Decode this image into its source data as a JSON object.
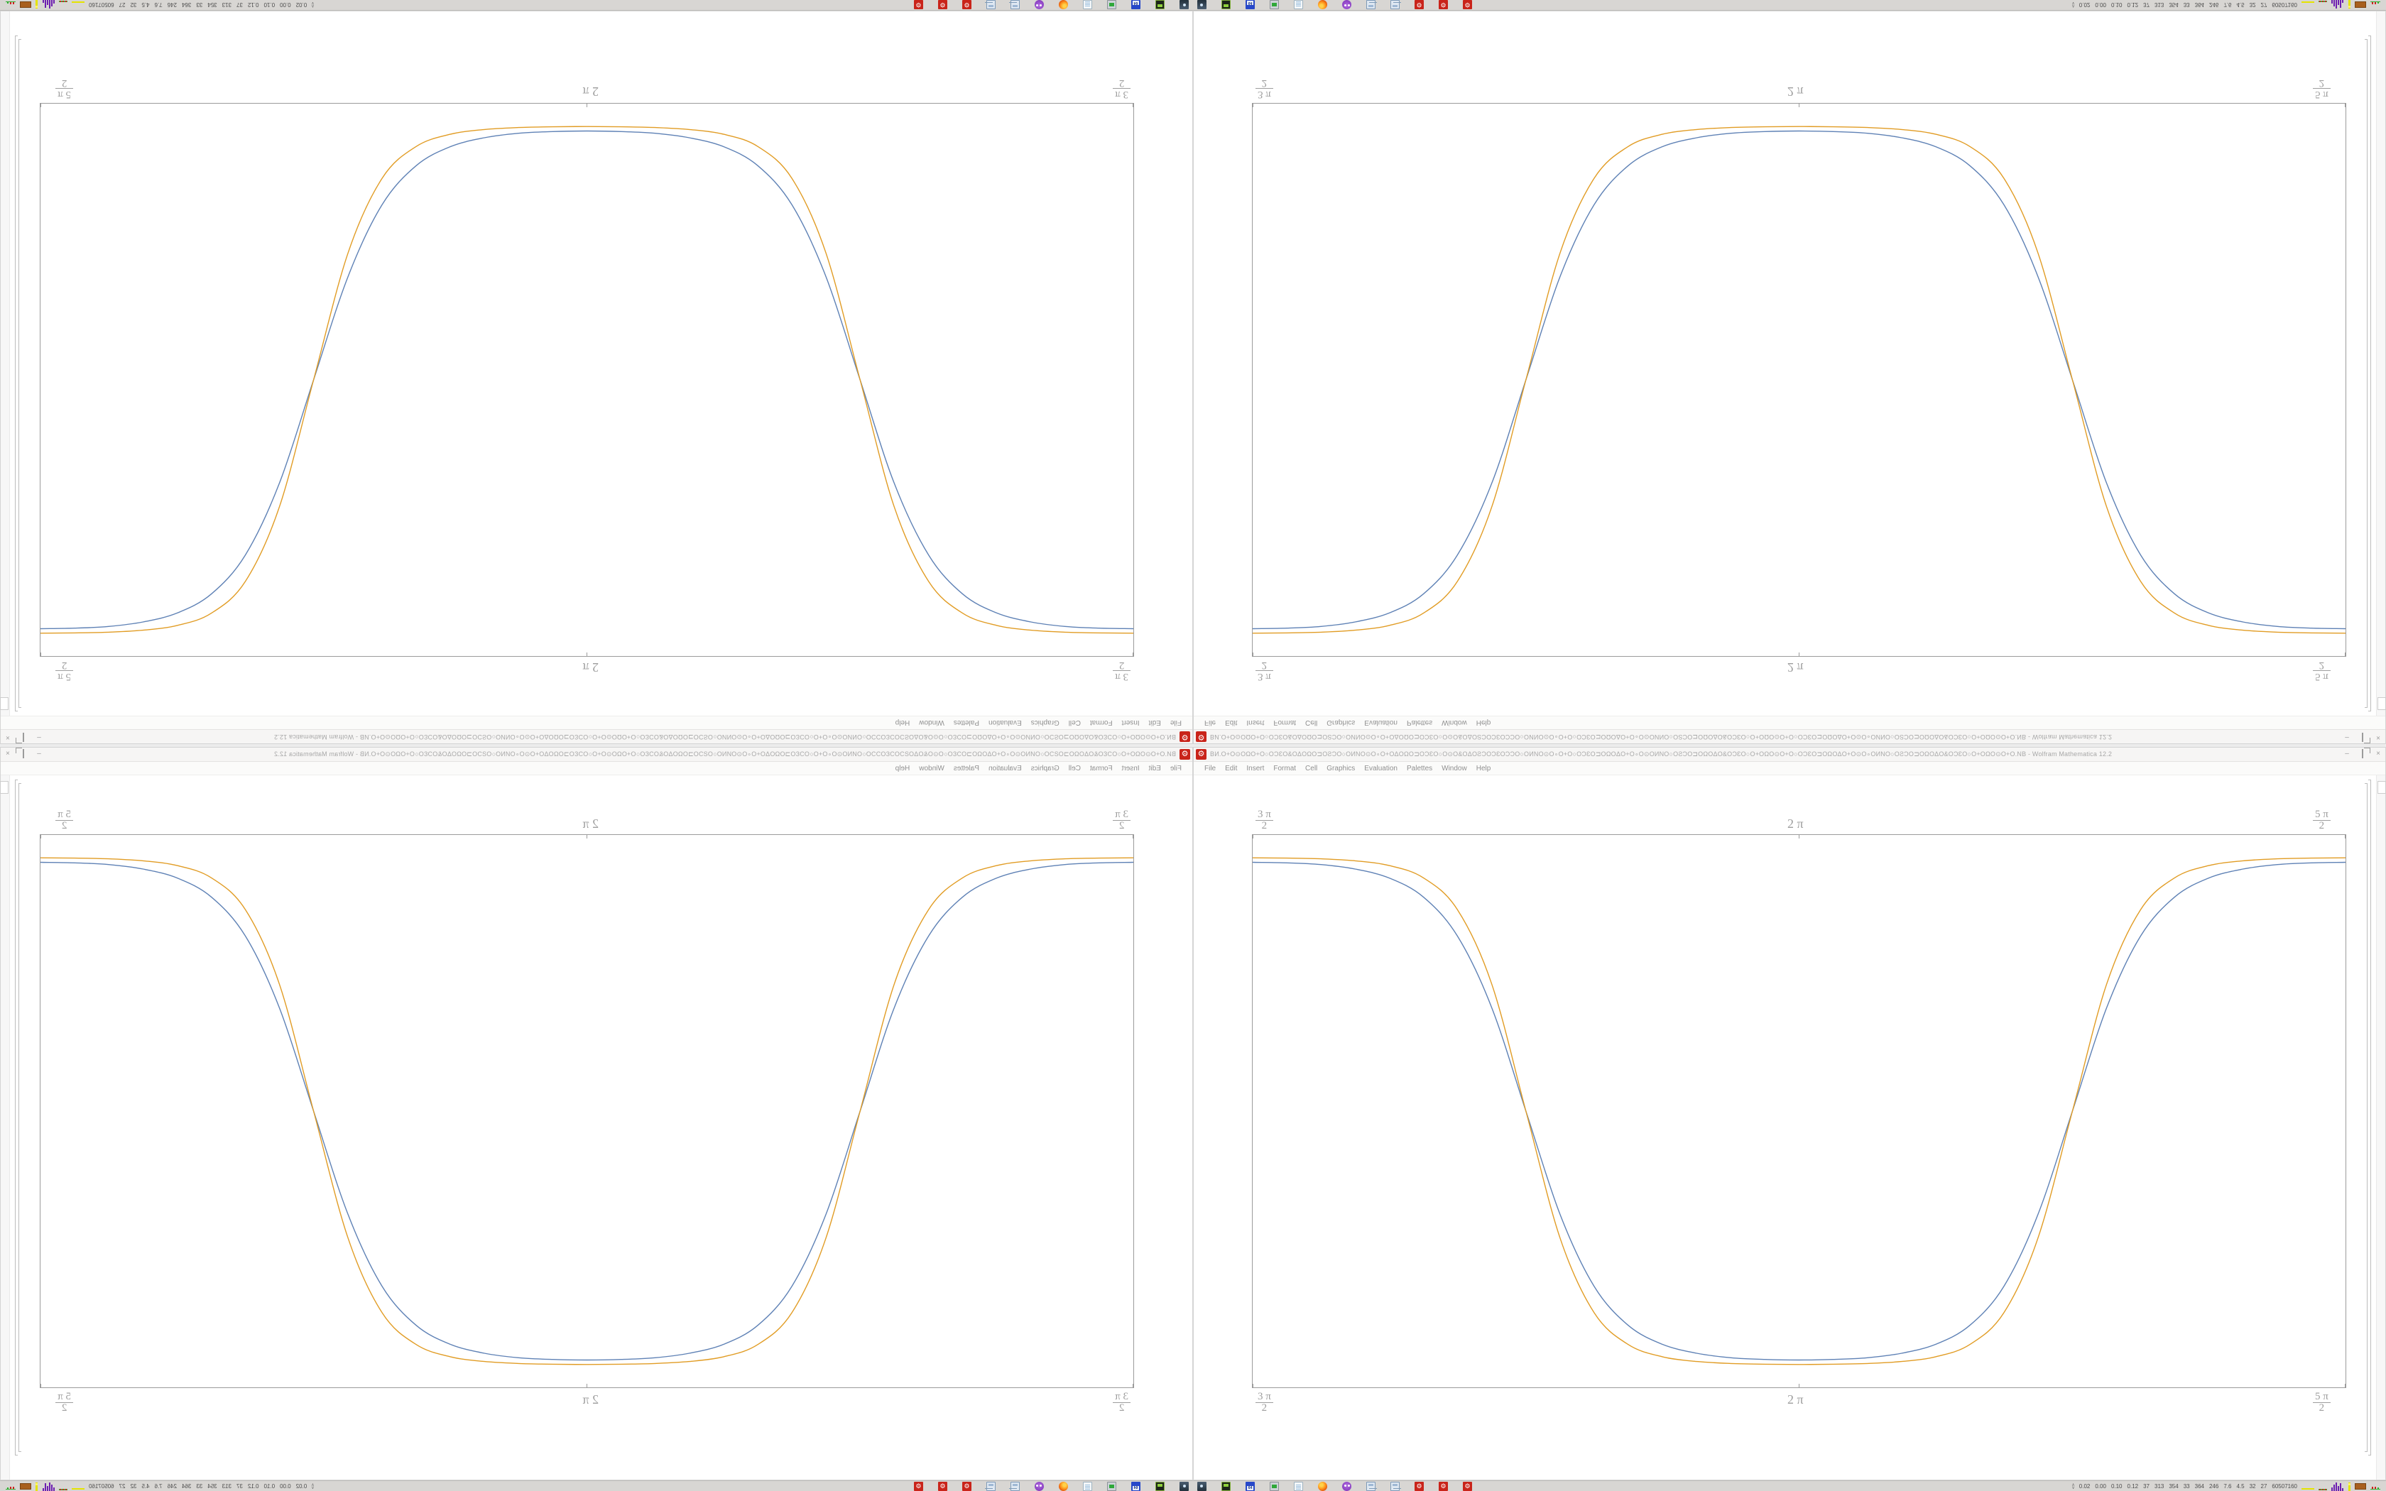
{
  "window": {
    "app": "Wolfram Mathematica",
    "title": "BИ.O+O⊙OΩO+O○OƆƐO&OΔOΩO⊐OƧƆO○OИNO⊙O∘O+OΔOΩO⊐OƆƐO○O⊙O&OΔOƧƆOƆƐOϽƆO○OИNO⊙O∘O+O○OƆƐO⊐OΩOΔO+O∘O⊙OИNO○OƧƆO⊐OΩOΔO&OƆƐO○O+OΩO⊙O+O○OƆƐO⊐OΩOΔO+O⊙O∘OИNO○OƧƆO⊐OΩOΔO&OƆƐO○O+OΩO⊙O+O.NB - Wolfram Mathematica 12.2",
    "icons": {
      "app_gear": "⚙",
      "minimize": "–",
      "close": "×"
    }
  },
  "menu": {
    "items": [
      "File",
      "Edit",
      "Insert",
      "Format",
      "Cell",
      "Graphics",
      "Evaluation",
      "Palettes",
      "Window",
      "Help"
    ]
  },
  "plot": {
    "tick_labels": {
      "left_num": "3 π",
      "left_den": "2",
      "center": "2 π",
      "right_num": "5 π",
      "right_den": "2"
    }
  },
  "chart_data": {
    "type": "line",
    "title": "",
    "xlabel": "",
    "ylabel": "",
    "frame": true,
    "grid": false,
    "legend": null,
    "xlim": [
      4.7124,
      7.854
    ],
    "ylim": [
      -1.11,
      1.11
    ],
    "xticks": [
      {
        "value": 4.7124,
        "label": "3π/2"
      },
      {
        "value": 6.2832,
        "label": "2π"
      },
      {
        "value": 7.854,
        "label": "5π/2"
      }
    ],
    "x": [
      4.712,
      4.811,
      4.909,
      5.007,
      5.105,
      5.203,
      5.301,
      5.4,
      5.498,
      5.596,
      5.694,
      5.792,
      5.89,
      5.989,
      6.087,
      6.185,
      6.283,
      6.381,
      6.48,
      6.578,
      6.676,
      6.774,
      6.872,
      6.97,
      7.069,
      7.167,
      7.265,
      7.363,
      7.461,
      7.559,
      7.658,
      7.756,
      7.854
    ],
    "series": [
      {
        "name": "curve-blue",
        "color": "#5e81b5",
        "values": [
          1.0,
          0.998,
          0.991,
          0.973,
          0.937,
          0.861,
          0.704,
          0.415,
          0.0,
          -0.415,
          -0.704,
          -0.861,
          -0.937,
          -0.973,
          -0.991,
          -0.998,
          -1.0,
          -0.998,
          -0.991,
          -0.973,
          -0.937,
          -0.861,
          -0.704,
          -0.415,
          0.0,
          0.415,
          0.704,
          0.861,
          0.937,
          0.973,
          0.991,
          0.998,
          1.0
        ]
      },
      {
        "name": "curve-orange",
        "color": "#e19c24",
        "values": [
          1.018,
          1.017,
          1.014,
          1.006,
          0.987,
          0.938,
          0.81,
          0.51,
          0.0,
          -0.51,
          -0.81,
          -0.938,
          -0.987,
          -1.006,
          -1.014,
          -1.017,
          -1.018,
          -1.017,
          -1.014,
          -1.006,
          -0.987,
          -0.938,
          -0.81,
          -0.51,
          0.0,
          0.51,
          0.81,
          0.938,
          0.987,
          1.006,
          1.014,
          1.017,
          1.018
        ]
      }
    ]
  },
  "taskbar": {
    "floppy_label": "64",
    "chevron_up": "∧",
    "chevron_down": "∨",
    "stats": [
      "0.02",
      "0.00",
      "0.10",
      "0.12",
      "37",
      "313",
      "354",
      "33",
      "364",
      "246",
      "7.6",
      "4.5",
      "32",
      "27",
      "60507160"
    ]
  }
}
